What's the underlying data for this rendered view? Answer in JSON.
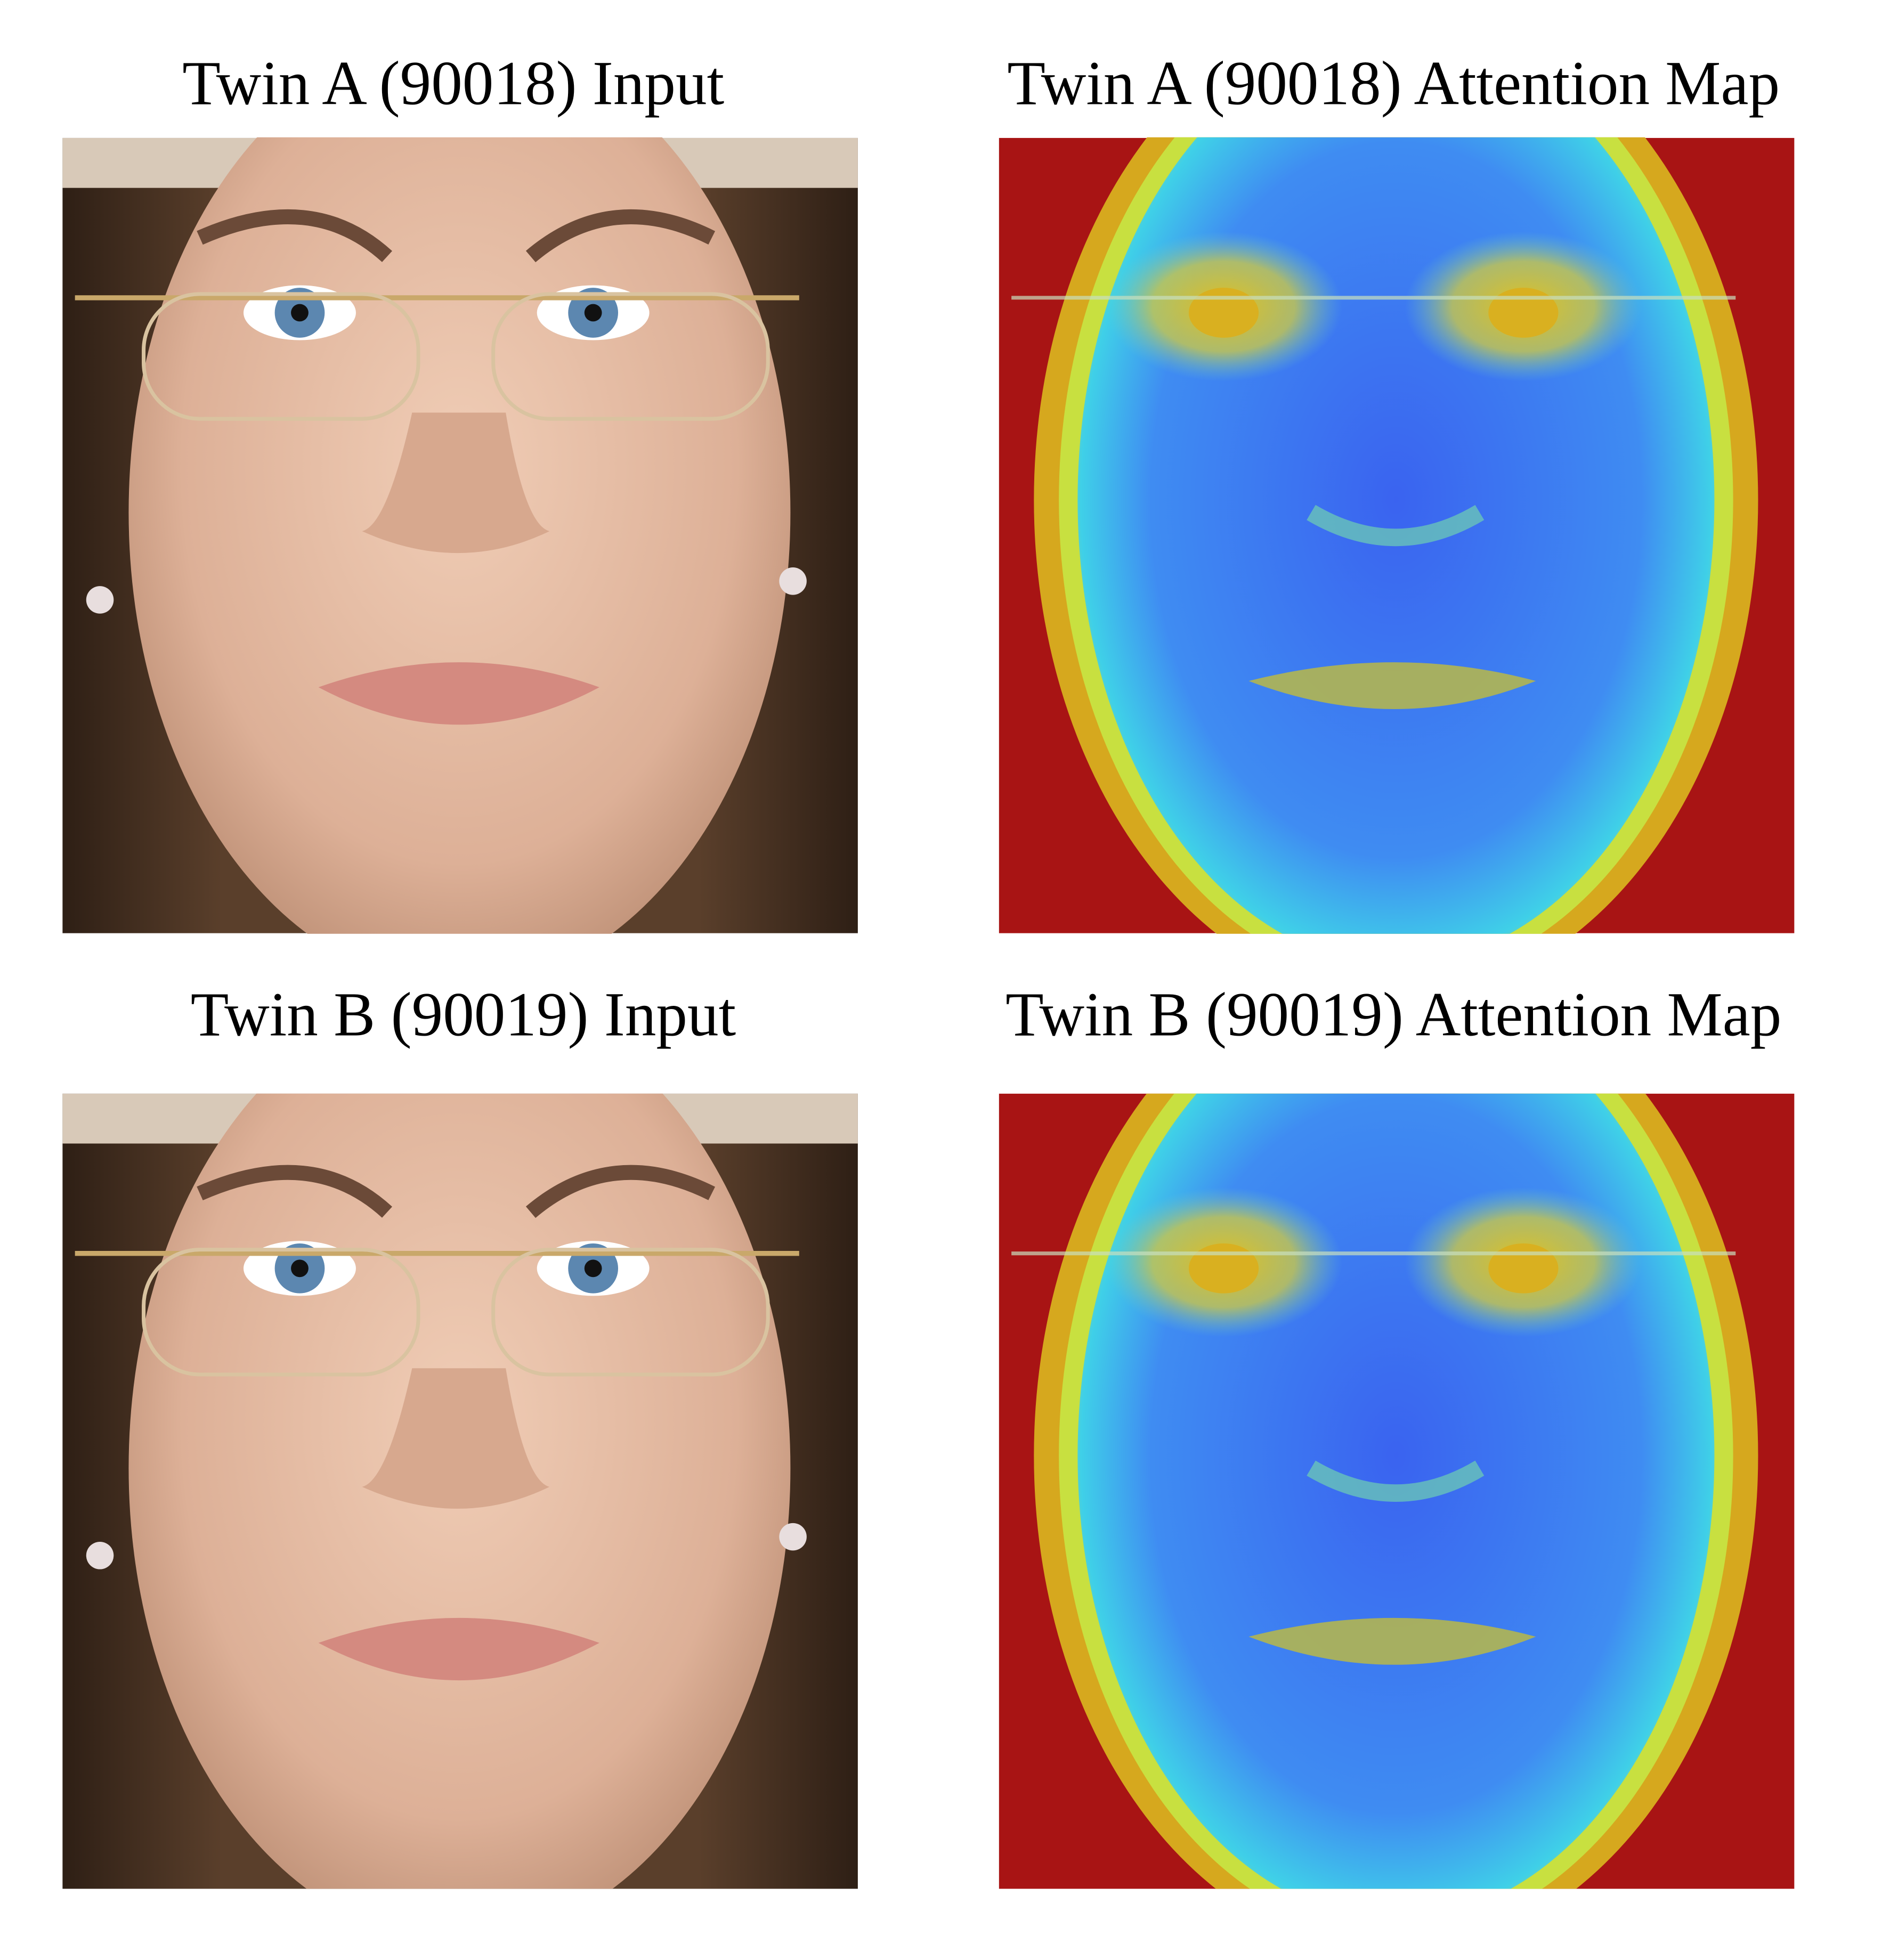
{
  "panels": [
    {
      "title": "Twin A (90018) Input"
    },
    {
      "title": "Twin A (90018) Attention Map"
    },
    {
      "title": "Twin B (90019) Input"
    },
    {
      "title": "Twin B (90019) Attention Map"
    }
  ]
}
